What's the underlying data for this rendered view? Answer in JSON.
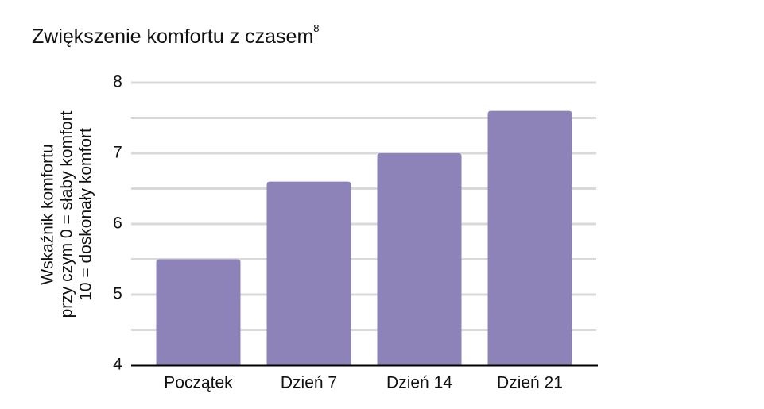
{
  "chart_data": {
    "type": "bar",
    "title": "Zwiększenie komfortu z czasem",
    "title_superscript": "8",
    "ylabel": [
      "Wskaźnik komfortu",
      "przy czym 0 =  słaby komfort",
      "10 = doskonały komfort"
    ],
    "categories": [
      "Początek",
      "Dzień 7",
      "Dzień 14",
      "Dzień 21"
    ],
    "values": [
      5.5,
      6.6,
      7.0,
      7.6
    ],
    "color": "#8d83b8",
    "ylim": [
      4,
      8
    ],
    "yticks": [
      4,
      5,
      6,
      7,
      8
    ],
    "minor_yticks": [
      4.5,
      5.5,
      6.5,
      7.5
    ],
    "grid": true
  }
}
